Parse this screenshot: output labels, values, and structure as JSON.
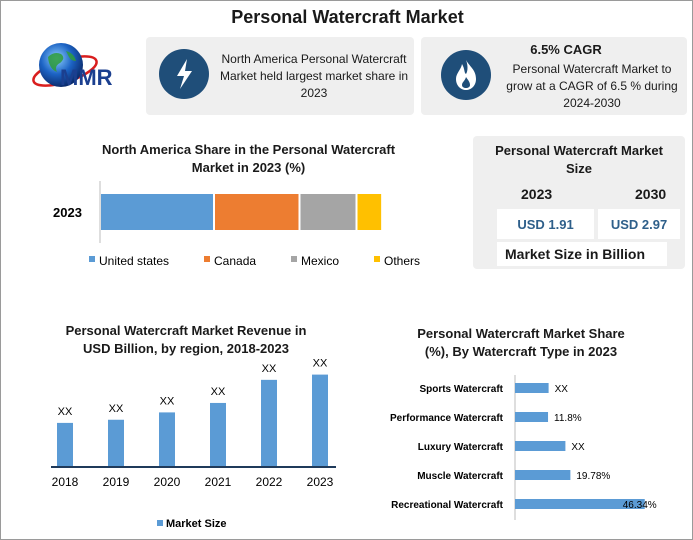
{
  "title": "Personal Watercraft Market",
  "logo_text": "MMR",
  "cards": [
    {
      "icon": "lightning-icon",
      "text_lines": [
        "North America Personal Watercraft",
        "Market held largest market share in",
        "2023"
      ]
    },
    {
      "icon": "flame-icon",
      "heading": "6.5% CAGR",
      "text_lines": [
        "Personal Watercraft Market to",
        "grow at a CAGR of 6.5 % during",
        "2024-2030"
      ]
    }
  ],
  "market_size": {
    "title_lines": [
      "Personal Watercraft Market",
      "Size"
    ],
    "years": [
      "2023",
      "2030"
    ],
    "values": [
      "USD 1.91",
      "USD 2.97"
    ],
    "footer": "Market Size in Billion"
  },
  "chart_data": [
    {
      "type": "bar",
      "orientation": "horizontal-stacked",
      "title_lines": [
        "North America Share in the Personal Watercraft",
        "Market in 2023 (%)"
      ],
      "categories": [
        "2023"
      ],
      "series": [
        {
          "name": "United states",
          "color": "#5b9bd5",
          "values": [
            40
          ]
        },
        {
          "name": "Canada",
          "color": "#ed7d31",
          "values": [
            30
          ]
        },
        {
          "name": "Mexico",
          "color": "#a5a5a5",
          "values": [
            20
          ]
        },
        {
          "name": "Others",
          "color": "#ffc000",
          "values": [
            9
          ]
        }
      ],
      "xlim": [
        0,
        100
      ]
    },
    {
      "type": "bar",
      "title_lines": [
        "Personal Watercraft Market Revenue in",
        "USD Billion, by region, 2018-2023"
      ],
      "categories": [
        "2018",
        "2019",
        "2020",
        "2021",
        "2022",
        "2023"
      ],
      "series": [
        {
          "name": "Market Size",
          "color": "#5b9bd5",
          "values": [
            42,
            45,
            52,
            61,
            83,
            88
          ],
          "labels": [
            "XX",
            "XX",
            "XX",
            "XX",
            "XX",
            "XX"
          ]
        }
      ],
      "ylim": [
        0,
        100
      ],
      "legend": "bottom"
    },
    {
      "type": "bar",
      "orientation": "horizontal",
      "title_lines": [
        "Personal Watercraft Market Share",
        "(%), By Watercraft Type in 2023"
      ],
      "categories": [
        "Sports Watercraft",
        "Performance Watercraft",
        "Luxury Watercraft",
        "Muscle Watercraft",
        "Recreational Watercraft"
      ],
      "series": [
        {
          "name": "",
          "color": "#5b9bd5",
          "values": [
            12,
            11.8,
            18,
            19.78,
            46.34
          ],
          "labels": [
            "XX",
            "11.8%",
            "XX",
            "19.78%",
            "46.34%"
          ]
        }
      ],
      "xlim": [
        0,
        50
      ]
    }
  ]
}
